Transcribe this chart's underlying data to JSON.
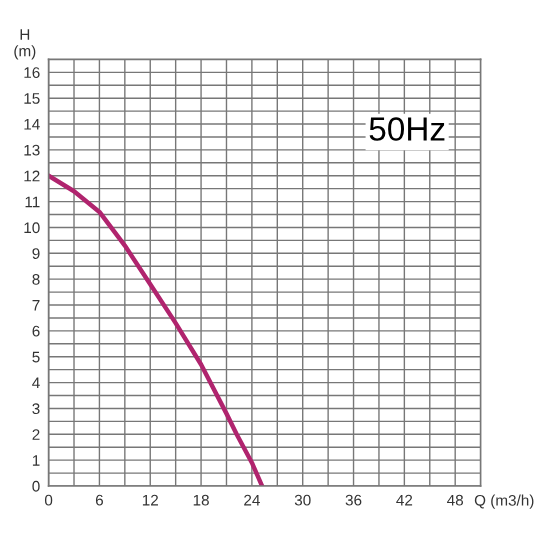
{
  "chart_data": {
    "type": "line",
    "xlabel": "Q (m3/h)",
    "ylabel": "H\n(m)",
    "annotations": [
      "50Hz"
    ],
    "x": [
      0,
      3,
      6,
      9,
      12,
      15,
      18,
      21,
      22.2,
      24,
      25.2
    ],
    "series": [
      {
        "color": "#b0246e",
        "values": [
          12,
          11.4,
          10.6,
          9.3,
          7.8,
          6.3,
          4.7,
          2.8,
          2.0,
          0.9,
          0
        ]
      }
    ],
    "xlim": [
      0,
      51
    ],
    "ylim": [
      0,
      16.5
    ],
    "xticks": [
      0,
      {
        "value": 3,
        "label": null
      },
      6,
      {
        "value": 9,
        "label": null
      },
      12,
      {
        "value": 15,
        "label": null
      },
      18,
      {
        "value": 21,
        "label": null
      },
      24,
      {
        "value": 27,
        "label": null
      },
      30,
      {
        "value": 33,
        "label": null
      },
      36,
      {
        "value": 39,
        "label": null
      },
      42,
      {
        "value": 45,
        "label": null
      },
      48
    ],
    "yticks": [
      0,
      {
        "value": 0.5,
        "label": null
      },
      1,
      {
        "value": 1.5,
        "label": null
      },
      2,
      {
        "value": 2.5,
        "label": null
      },
      3,
      {
        "value": 3.5,
        "label": null
      },
      4,
      {
        "value": 4.5,
        "label": null
      },
      5,
      {
        "value": 5.5,
        "label": null
      },
      6,
      {
        "value": 6.5,
        "label": null
      },
      7,
      {
        "value": 7.5,
        "label": null
      },
      8,
      {
        "value": 8.5,
        "label": null
      },
      9,
      {
        "value": 9.5,
        "label": null
      },
      10,
      {
        "value": 10.5,
        "label": null
      },
      11,
      {
        "value": 11.5,
        "label": null
      },
      12,
      {
        "value": 12.5,
        "label": null
      },
      13,
      {
        "value": 13.5,
        "label": null
      },
      14,
      {
        "value": 14.5,
        "label": null
      },
      15,
      {
        "value": 15.5,
        "label": null
      },
      16
    ],
    "grid": true,
    "marker": "none",
    "line_style": "solid"
  }
}
